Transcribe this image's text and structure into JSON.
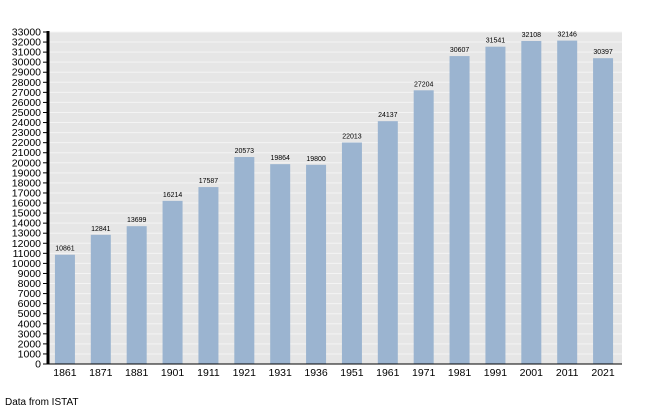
{
  "chart_data": {
    "type": "bar",
    "title": "",
    "xlabel": "",
    "ylabel": "",
    "categories": [
      "1861",
      "1871",
      "1881",
      "1901",
      "1911",
      "1921",
      "1931",
      "1936",
      "1951",
      "1961",
      "1971",
      "1981",
      "1991",
      "2001",
      "2011",
      "2021"
    ],
    "values": [
      10861,
      12841,
      13699,
      16214,
      17587,
      20573,
      19864,
      19800,
      22013,
      24137,
      27204,
      30607,
      31541,
      32108,
      32146,
      30397
    ],
    "ylim": [
      0,
      33000
    ],
    "ytick_step": 1000,
    "grid": true,
    "legend": "none",
    "colors": {
      "bar": "#9bb4d0",
      "plot_background": "#e6e6e6",
      "grid": "#f4f4f4",
      "axis": "#000000"
    }
  },
  "footer": {
    "source": "Data from ISTAT"
  }
}
